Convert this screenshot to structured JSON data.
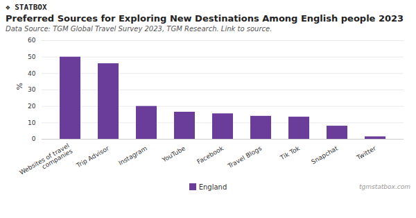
{
  "chart_data": {
    "type": "bar",
    "title": "Preferred Sources for Exploring New Destinations Among English people 2023",
    "subtitle": "Data Source: TGM Global Travel Survey 2023, TGM Research. Link to source.",
    "ylabel": "%",
    "categories": [
      "Websites of travel\ncompanies",
      "Trip Advisor",
      "Instagram",
      "YouTube",
      "Facebook",
      "Travel Blogs",
      "Tik Tok",
      "Snapchat",
      "Twitter"
    ],
    "series": [
      {
        "name": "England",
        "color": "#6a3d9a",
        "values": [
          50,
          46,
          20,
          16.5,
          15.5,
          14,
          13.5,
          8,
          1.5
        ]
      }
    ],
    "ylim": [
      0,
      60
    ],
    "yticks": [
      0,
      10,
      20,
      30,
      40,
      50,
      60
    ],
    "grid": true,
    "legend": "bottom",
    "annotations": [
      "❖ STATBOX",
      "tgmstatbox.com"
    ]
  }
}
